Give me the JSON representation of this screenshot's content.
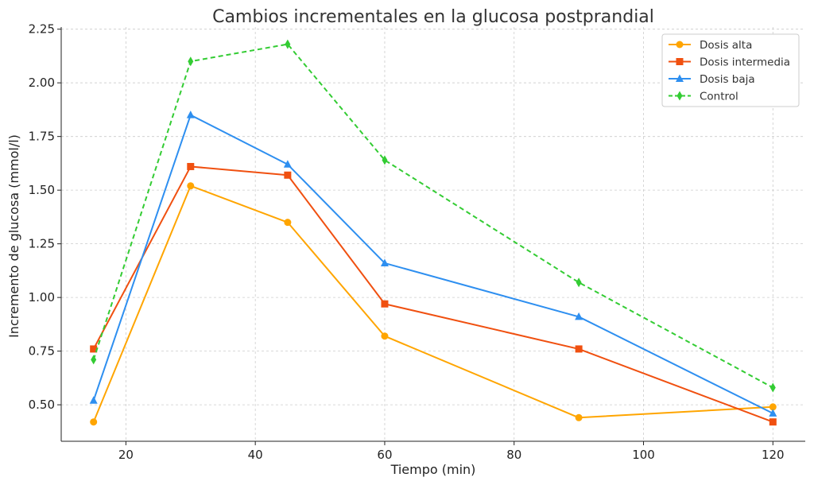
{
  "chart_data": {
    "type": "line",
    "title": "Cambios incrementales en la glucosa postprandial",
    "xlabel": "Tiempo (min)",
    "ylabel": "Incremento de glucosa (mmol/l)",
    "x": [
      15,
      30,
      45,
      60,
      90,
      120
    ],
    "xlim": [
      10,
      125
    ],
    "ylim": [
      0.33,
      2.26
    ],
    "xticks": [
      20,
      40,
      60,
      80,
      100,
      120
    ],
    "yticks": [
      0.5,
      0.75,
      1.0,
      1.25,
      1.5,
      1.75,
      2.0,
      2.25
    ],
    "xtick_labels": [
      "20",
      "40",
      "60",
      "80",
      "100",
      "120"
    ],
    "ytick_labels": [
      "0.50",
      "0.75",
      "1.00",
      "1.25",
      "1.50",
      "1.75",
      "2.00",
      "2.25"
    ],
    "grid": true,
    "legend_position": "top-right",
    "series": [
      {
        "name": "Dosis alta",
        "values": [
          0.42,
          1.52,
          1.35,
          0.82,
          0.44,
          0.49
        ],
        "color": "#FFA500",
        "marker": "circle",
        "dash": false
      },
      {
        "name": "Dosis intermedia",
        "values": [
          0.76,
          1.61,
          1.57,
          0.97,
          0.76,
          0.42
        ],
        "color": "#F05010",
        "marker": "square",
        "dash": false
      },
      {
        "name": "Dosis baja",
        "values": [
          0.52,
          1.85,
          1.62,
          1.16,
          0.91,
          0.46
        ],
        "color": "#2E8FF0",
        "marker": "triangle",
        "dash": false
      },
      {
        "name": "Control",
        "values": [
          0.71,
          2.1,
          2.18,
          1.64,
          1.07,
          0.58
        ],
        "color": "#33CC33",
        "marker": "diamond",
        "dash": true
      }
    ]
  }
}
